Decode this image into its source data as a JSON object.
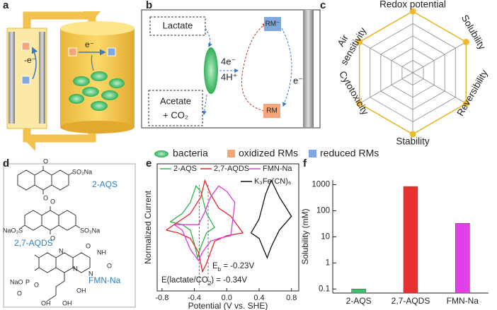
{
  "panels": {
    "a": {
      "label": "a",
      "left_electron": "-e⁻",
      "right_electron": "e⁻"
    },
    "b": {
      "label": "b",
      "lactate": "Lactate",
      "acetate": "Acetate",
      "co2": "+ CO₂",
      "electrons": "4e⁻",
      "protons": "4H⁺",
      "rm_reduced": "RM⁻",
      "rm_oxidized": "RM",
      "electrode_electron": "e⁻"
    },
    "c": {
      "label": "c",
      "axes": [
        "Redox potential",
        "Solubility",
        "Reversibility",
        "Stability",
        "Cytotoxicity",
        "Air",
        "sensitivity"
      ]
    },
    "d": {
      "label": "d",
      "atoms": [
        "O",
        "SO₃Na",
        "O",
        "NaO₃S",
        "O",
        "SO₃Na",
        "O",
        "N",
        "N",
        "O",
        "NH",
        "O",
        "N",
        "NaO",
        "P",
        "O",
        "O",
        "OH",
        "OH",
        "OH"
      ],
      "names": [
        "2-AQS",
        "2,7-AQDS",
        "FMN-Na"
      ]
    },
    "e": {
      "label": "e"
    },
    "f": {
      "label": "f"
    }
  },
  "legend": [
    "bacteria",
    "oxidized RMs",
    "reduced RMs"
  ],
  "chart_data": [
    {
      "type": "line",
      "xlabel": "Potential (V vs. SHE)",
      "ylabel": "Normalized Current",
      "xlim": [
        -0.86,
        0.89
      ],
      "xticks": [
        -0.8,
        -0.4,
        {
          "value": 0,
          "label": "0.0"
        },
        0.4,
        0.8
      ],
      "ylim": [
        -1.3,
        1.0
      ],
      "series": [
        {
          "name": "2-AQS",
          "color": "#2db34a",
          "x": [
            -0.7,
            -0.55,
            -0.45,
            -0.4,
            -0.36,
            -0.32,
            -0.25,
            -0.15,
            -0.25,
            -0.32,
            -0.38,
            -0.45,
            -0.55,
            -0.7
          ],
          "values": [
            -0.05,
            -0.1,
            -0.2,
            -0.45,
            -0.7,
            -0.5,
            -0.25,
            -0.15,
            0.1,
            0.5,
            0.6,
            0.3,
            0.1,
            -0.05
          ]
        },
        {
          "name": "2,7-AQDS",
          "color": "#e8262a",
          "x": [
            -0.75,
            -0.6,
            -0.45,
            -0.35,
            -0.3,
            -0.25,
            -0.15,
            0.0,
            0.2,
            0.05,
            -0.1,
            -0.2,
            -0.27,
            -0.32,
            -0.45,
            -0.6,
            -0.75
          ],
          "values": [
            -0.2,
            -0.25,
            -0.35,
            -0.6,
            -0.95,
            -0.8,
            -0.4,
            -0.3,
            -0.25,
            0.05,
            0.2,
            0.45,
            0.7,
            0.4,
            0.1,
            -0.05,
            -0.2
          ]
        },
        {
          "name": "FMN-Na",
          "color": "#d93cd9",
          "x": [
            -0.65,
            -0.55,
            -0.45,
            -0.35,
            -0.3,
            -0.2,
            -0.1,
            0.05,
            0.1,
            0.0,
            -0.1,
            -0.2,
            -0.28,
            -0.35,
            -0.5,
            -0.65
          ],
          "values": [
            -0.1,
            -0.2,
            -0.55,
            -0.75,
            -0.6,
            -0.4,
            -0.35,
            -0.3,
            0.3,
            0.5,
            0.6,
            0.4,
            0.1,
            -0.1,
            -0.1,
            -0.1
          ]
        },
        {
          "name": "K₃Fe(CN)₆",
          "color": "#111111",
          "x": [
            0.3,
            0.4,
            0.5,
            0.55,
            0.65,
            0.8,
            0.65,
            0.55,
            0.48,
            0.4,
            0.3
          ],
          "values": [
            -0.25,
            -0.35,
            -0.7,
            -0.5,
            -0.2,
            0.05,
            0.4,
            0.7,
            0.45,
            0.0,
            -0.25
          ]
        }
      ],
      "annotations": [
        {
          "x": -0.23,
          "parts": [
            "E",
            "b",
            " = -0.23V"
          ]
        },
        {
          "x": -0.34,
          "parts": [
            "E(lactate/CO",
            "2",
            ") = -0.34V"
          ]
        }
      ]
    },
    {
      "type": "bar",
      "ylabel": "Solubility (mM)",
      "log": true,
      "ylim": [
        0.07,
        1500
      ],
      "yticks": [
        0.1,
        1,
        10,
        100,
        1000
      ],
      "categories": [
        "2-AQS",
        "2,7-AQDS",
        "FMN-Na"
      ],
      "values": [
        0.1,
        850,
        33
      ],
      "colors": [
        "#3cc46a",
        "#e8302f",
        "#e040e6"
      ]
    }
  ]
}
